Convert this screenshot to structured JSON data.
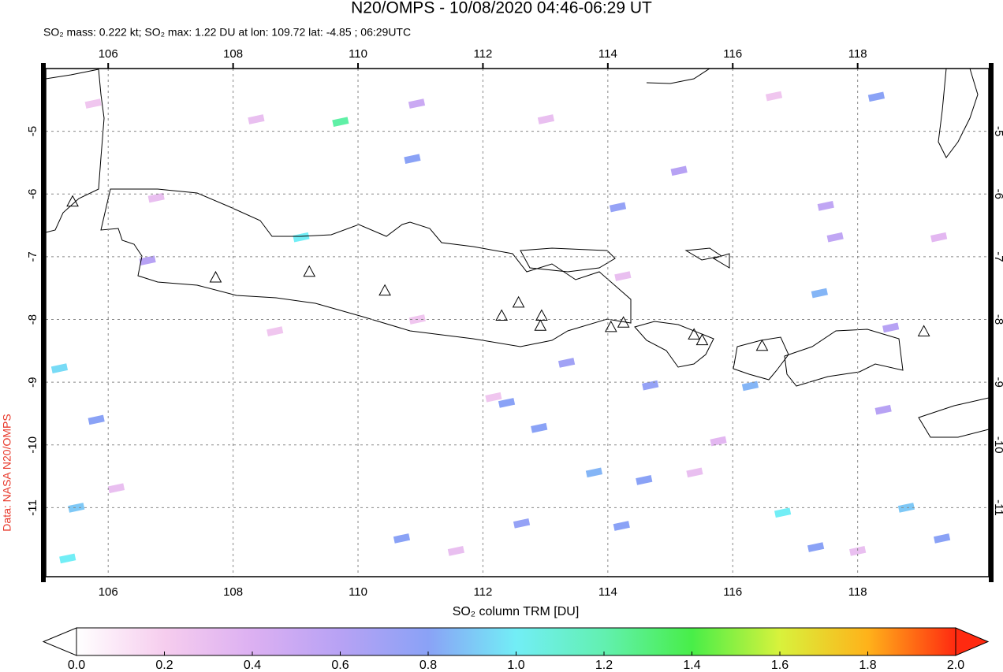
{
  "chart_data": {
    "type": "map",
    "title": "N20/OMPS - 10/08/2020 04:46-06:29 UT",
    "subtitle": "SO₂ mass: 0.222 kt; SO₂ max: 1.22 DU at lon: 109.72 lat: -4.85 ; 06:29UTC",
    "side_note": "Data: NASA N20/OMPS",
    "xlim": [
      105.0,
      120.1
    ],
    "ylim": [
      -12.1,
      -4.0
    ],
    "xticks": [
      106,
      108,
      110,
      112,
      114,
      116,
      118
    ],
    "yticks": [
      -5,
      -6,
      -7,
      -8,
      -9,
      -10,
      -11
    ],
    "grid": true,
    "colorbar": {
      "label": "SO₂ column TRM [DU]",
      "lim": [
        0,
        2
      ],
      "ticks": [
        {
          "value": 0,
          "label": "0.0"
        },
        {
          "value": 0.2,
          "label": "0.2"
        },
        {
          "value": 0.4,
          "label": "0.4"
        },
        {
          "value": 0.6,
          "label": "0.6"
        },
        {
          "value": 0.8,
          "label": "0.8"
        },
        {
          "value": 1,
          "label": "1.0"
        },
        {
          "value": 1.2,
          "label": "1.2"
        },
        {
          "value": 1.4,
          "label": "1.4"
        },
        {
          "value": 1.6,
          "label": "1.6"
        },
        {
          "value": 1.8,
          "label": "1.8"
        },
        {
          "value": 2,
          "label": "2.0"
        }
      ],
      "colormap": [
        "#ffffff",
        "#f6cdee",
        "#dcb0f2",
        "#b7a2f4",
        "#8aa2f6",
        "#72eef6",
        "#62f0b0",
        "#48ee48",
        "#d8f23c",
        "#ffb21a",
        "#ff2a10"
      ]
    },
    "pixels": {
      "lon": [
        109.72,
        109.09,
        105.22,
        105.35,
        116.8,
        118.78,
        117.39,
        118.3,
        119.35,
        113.78,
        114.22,
        114.68,
        116.28,
        112.9,
        112.38,
        110.87,
        117.33,
        114.58,
        114.16,
        113.34,
        118.41,
        115.14,
        117.64,
        117.49,
        118.53,
        105.81,
        105.49,
        110.7,
        112.62,
        110.94,
        106.63,
        105.76,
        106.77,
        108.67,
        111.57,
        115.39,
        116.66,
        119.3,
        108.37,
        113.01,
        112.17,
        118.0,
        114.24,
        110.95,
        115.77,
        106.13
      ],
      "lat": [
        -4.85,
        -6.69,
        -8.78,
        -11.81,
        -11.08,
        -11.0,
        -7.58,
        -4.45,
        -11.49,
        -10.44,
        -11.29,
        -9.05,
        -9.06,
        -9.73,
        -9.33,
        -5.44,
        -11.63,
        -10.56,
        -6.21,
        -8.69,
        -9.44,
        -5.63,
        -6.69,
        -6.19,
        -8.13,
        -9.6,
        -11.0,
        -11.49,
        -11.25,
        -4.56,
        -7.06,
        -4.56,
        -6.06,
        -8.19,
        -11.69,
        -10.44,
        -4.44,
        -6.69,
        -4.81,
        -4.81,
        -9.24,
        -11.69,
        -7.31,
        -8.0,
        -9.94,
        -10.69
      ],
      "values": [
        1.22,
        1.0,
        0.95,
        1.0,
        1.0,
        0.9,
        0.85,
        0.8,
        0.8,
        0.85,
        0.8,
        0.75,
        0.85,
        0.8,
        0.8,
        0.8,
        0.8,
        0.8,
        0.75,
        0.7,
        0.6,
        0.6,
        0.55,
        0.55,
        0.6,
        0.8,
        0.9,
        0.8,
        0.75,
        0.5,
        0.6,
        0.25,
        0.3,
        0.25,
        0.3,
        0.3,
        0.25,
        0.35,
        0.3,
        0.3,
        0.25,
        0.3,
        0.3,
        0.25,
        0.35,
        0.3
      ]
    },
    "volcanoes": {
      "lon": [
        105.43,
        107.72,
        109.22,
        110.43,
        112.3,
        112.57,
        112.94,
        112.92,
        114.05,
        114.25,
        115.38,
        115.51,
        116.47,
        119.06
      ],
      "lat": [
        -6.13,
        -7.34,
        -7.25,
        -7.55,
        -7.95,
        -7.74,
        -7.95,
        -8.11,
        -8.13,
        -8.06,
        -8.25,
        -8.34,
        -8.43,
        -8.2
      ]
    }
  }
}
